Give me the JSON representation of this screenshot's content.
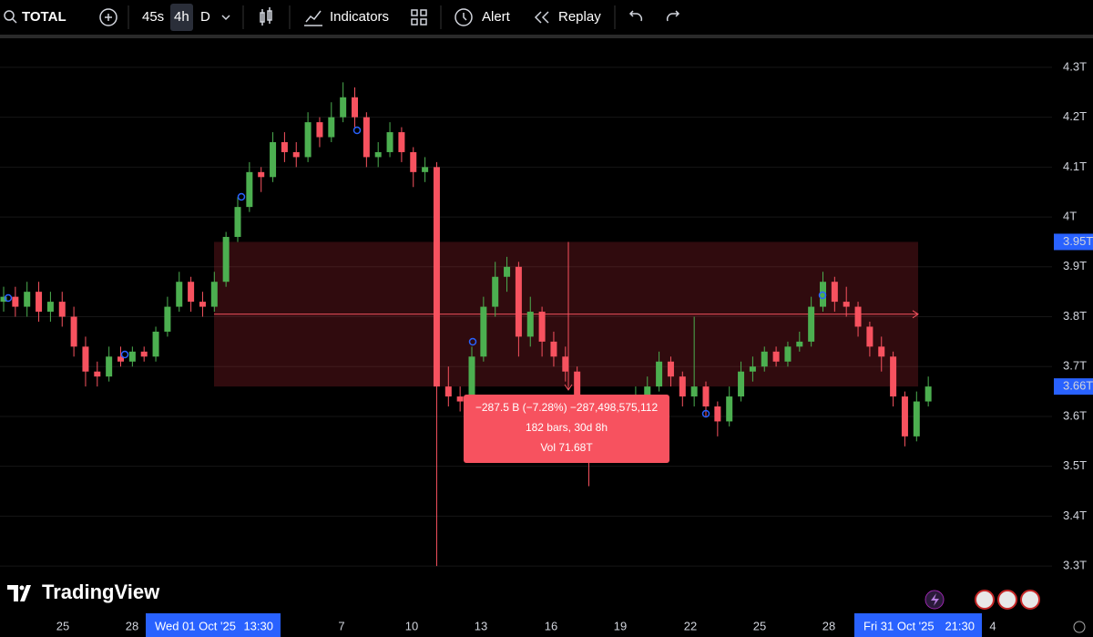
{
  "toolbar": {
    "symbol": "TOTAL",
    "intervals": [
      "45s",
      "4h",
      "D"
    ],
    "indicators": "Indicators",
    "alert": "Alert",
    "replay": "Replay"
  },
  "logo": "TradingView",
  "tooltip": {
    "lines": [
      "−287.5 B (−7.28%) −287,498,575,112",
      "182 bars, 30d 8h",
      "Vol 71.68T"
    ]
  },
  "chart_data": {
    "type": "candlestick",
    "up_color": "#4caf50",
    "down_color": "#f7525f",
    "grid": true,
    "ylim": [
      3.207,
      4.362
    ],
    "yticks": [
      {
        "value": 4.3,
        "label": "4.3T"
      },
      {
        "value": 4.2,
        "label": "4.2T"
      },
      {
        "value": 4.1,
        "label": "4.1T"
      },
      {
        "value": 4,
        "label": "4T"
      },
      {
        "value": 3.9,
        "label": "3.9T"
      },
      {
        "value": 3.8,
        "label": "3.8T"
      },
      {
        "value": 3.7,
        "label": "3.7T"
      },
      {
        "value": 3.6,
        "label": "3.6T"
      },
      {
        "value": 3.5,
        "label": "3.5T"
      },
      {
        "value": 3.4,
        "label": "3.4T"
      },
      {
        "value": 3.3,
        "label": "3.3T"
      }
    ],
    "measure": {
      "top": {
        "value": 3.95,
        "label": "3.95T"
      },
      "bottom": {
        "value": 3.66,
        "label": "3.66T"
      }
    },
    "xlabels": [
      "25",
      "28",
      "7",
      "10",
      "13",
      "16",
      "19",
      "22",
      "25",
      "28",
      "4"
    ],
    "crosshair_labels": [
      {
        "date": "Wed 01 Oct '25",
        "time": "13:30"
      },
      {
        "date": "Fri 31 Oct '25",
        "time": "21:30"
      }
    ],
    "candles": [
      [
        3.83,
        3.86,
        3.81,
        3.84
      ],
      [
        3.84,
        3.86,
        3.8,
        3.82
      ],
      [
        3.82,
        3.87,
        3.8,
        3.85
      ],
      [
        3.85,
        3.87,
        3.79,
        3.81
      ],
      [
        3.81,
        3.85,
        3.79,
        3.83
      ],
      [
        3.83,
        3.85,
        3.78,
        3.8
      ],
      [
        3.8,
        3.82,
        3.72,
        3.74
      ],
      [
        3.74,
        3.76,
        3.66,
        3.69
      ],
      [
        3.69,
        3.71,
        3.66,
        3.68
      ],
      [
        3.68,
        3.74,
        3.67,
        3.72
      ],
      [
        3.72,
        3.74,
        3.7,
        3.71
      ],
      [
        3.71,
        3.74,
        3.7,
        3.73
      ],
      [
        3.73,
        3.74,
        3.71,
        3.72
      ],
      [
        3.72,
        3.78,
        3.71,
        3.77
      ],
      [
        3.77,
        3.84,
        3.76,
        3.82
      ],
      [
        3.82,
        3.89,
        3.81,
        3.87
      ],
      [
        3.87,
        3.88,
        3.81,
        3.83
      ],
      [
        3.83,
        3.85,
        3.8,
        3.82
      ],
      [
        3.82,
        3.89,
        3.81,
        3.87
      ],
      [
        3.87,
        3.97,
        3.86,
        3.96
      ],
      [
        3.96,
        4.04,
        3.95,
        4.02
      ],
      [
        4.02,
        4.11,
        4.01,
        4.09
      ],
      [
        4.09,
        4.1,
        4.05,
        4.08
      ],
      [
        4.08,
        4.17,
        4.07,
        4.15
      ],
      [
        4.15,
        4.17,
        4.11,
        4.13
      ],
      [
        4.13,
        4.15,
        4.1,
        4.12
      ],
      [
        4.12,
        4.21,
        4.11,
        4.19
      ],
      [
        4.19,
        4.2,
        4.14,
        4.16
      ],
      [
        4.16,
        4.23,
        4.15,
        4.2
      ],
      [
        4.2,
        4.27,
        4.19,
        4.24
      ],
      [
        4.24,
        4.26,
        4.18,
        4.2
      ],
      [
        4.2,
        4.21,
        4.1,
        4.12
      ],
      [
        4.12,
        4.15,
        4.1,
        4.13
      ],
      [
        4.13,
        4.19,
        4.12,
        4.17
      ],
      [
        4.17,
        4.18,
        4.11,
        4.13
      ],
      [
        4.13,
        4.14,
        4.06,
        4.09
      ],
      [
        4.09,
        4.12,
        4.07,
        4.1
      ],
      [
        4.1,
        4.11,
        3.3,
        3.66
      ],
      [
        3.66,
        3.7,
        3.62,
        3.64
      ],
      [
        3.64,
        3.66,
        3.61,
        3.63
      ],
      [
        3.63,
        3.74,
        3.62,
        3.72
      ],
      [
        3.72,
        3.84,
        3.71,
        3.82
      ],
      [
        3.82,
        3.91,
        3.8,
        3.88
      ],
      [
        3.88,
        3.92,
        3.85,
        3.9
      ],
      [
        3.9,
        3.91,
        3.72,
        3.76
      ],
      [
        3.76,
        3.84,
        3.74,
        3.81
      ],
      [
        3.81,
        3.82,
        3.72,
        3.75
      ],
      [
        3.75,
        3.77,
        3.7,
        3.72
      ],
      [
        3.72,
        3.74,
        3.67,
        3.69
      ],
      [
        3.69,
        3.7,
        3.6,
        3.62
      ],
      [
        3.62,
        3.63,
        3.46,
        3.53
      ],
      [
        3.53,
        3.64,
        3.52,
        3.62
      ],
      [
        3.62,
        3.63,
        3.58,
        3.6
      ],
      [
        3.6,
        3.64,
        3.59,
        3.62
      ],
      [
        3.62,
        3.66,
        3.61,
        3.64
      ],
      [
        3.64,
        3.68,
        3.63,
        3.66
      ],
      [
        3.66,
        3.73,
        3.65,
        3.71
      ],
      [
        3.71,
        3.72,
        3.66,
        3.68
      ],
      [
        3.68,
        3.69,
        3.62,
        3.64
      ],
      [
        3.64,
        3.8,
        3.62,
        3.66
      ],
      [
        3.66,
        3.67,
        3.6,
        3.62
      ],
      [
        3.62,
        3.63,
        3.56,
        3.59
      ],
      [
        3.59,
        3.66,
        3.58,
        3.64
      ],
      [
        3.64,
        3.71,
        3.63,
        3.69
      ],
      [
        3.69,
        3.72,
        3.67,
        3.7
      ],
      [
        3.7,
        3.74,
        3.69,
        3.73
      ],
      [
        3.73,
        3.74,
        3.7,
        3.71
      ],
      [
        3.71,
        3.75,
        3.7,
        3.74
      ],
      [
        3.74,
        3.77,
        3.73,
        3.75
      ],
      [
        3.75,
        3.84,
        3.74,
        3.82
      ],
      [
        3.82,
        3.89,
        3.81,
        3.87
      ],
      [
        3.87,
        3.88,
        3.81,
        3.83
      ],
      [
        3.83,
        3.86,
        3.8,
        3.82
      ],
      [
        3.82,
        3.83,
        3.76,
        3.78
      ],
      [
        3.78,
        3.79,
        3.72,
        3.74
      ],
      [
        3.74,
        3.76,
        3.69,
        3.72
      ],
      [
        3.72,
        3.73,
        3.62,
        3.64
      ],
      [
        3.64,
        3.65,
        3.54,
        3.56
      ],
      [
        3.56,
        3.65,
        3.55,
        3.63
      ],
      [
        3.63,
        3.68,
        3.62,
        3.66
      ]
    ]
  }
}
